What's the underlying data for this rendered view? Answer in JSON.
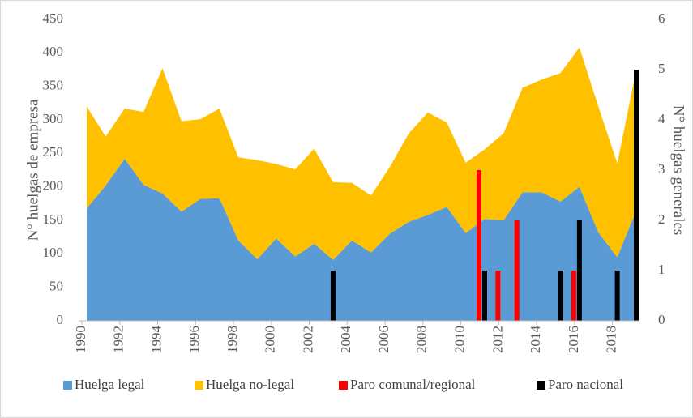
{
  "chart_data": {
    "type": "area_bar",
    "x": [
      1990,
      1991,
      1992,
      1993,
      1994,
      1995,
      1996,
      1997,
      1998,
      1999,
      2000,
      2001,
      2002,
      2003,
      2004,
      2005,
      2006,
      2007,
      2008,
      2009,
      2010,
      2011,
      2012,
      2013,
      2014,
      2015,
      2016,
      2017,
      2018,
      2019
    ],
    "xlim": [
      1990,
      2019
    ],
    "xticks": [
      1990,
      1992,
      1994,
      1996,
      1998,
      2000,
      2002,
      2004,
      2006,
      2008,
      2010,
      2012,
      2014,
      2016,
      2018
    ],
    "ylim": [
      0,
      450
    ],
    "yticks": [
      0,
      50,
      100,
      150,
      200,
      250,
      300,
      350,
      400,
      450
    ],
    "y2lim": [
      0,
      6
    ],
    "y2ticks": [
      0,
      1,
      2,
      3,
      4,
      5,
      6
    ],
    "ylabel": "N° huelgas de empresa",
    "y2label": "N° huelgas generales",
    "series": [
      {
        "name": "Huelga legal",
        "color": "#5b9bd5",
        "kind": "area",
        "values": [
          168,
          202,
          242,
          203,
          190,
          163,
          182,
          183,
          120,
          92,
          123,
          96,
          115,
          91,
          120,
          102,
          130,
          148,
          158,
          170,
          131,
          152,
          150,
          192,
          192,
          178,
          200,
          132,
          95,
          165
        ]
      },
      {
        "name": "Huelga no-legal",
        "color": "#ffc000",
        "kind": "area",
        "values": [
          152,
          73,
          75,
          109,
          187,
          135,
          119,
          134,
          124,
          148,
          111,
          130,
          142,
          116,
          86,
          85,
          100,
          132,
          153,
          126,
          105,
          104,
          130,
          156,
          168,
          192,
          208,
          188,
          140,
          210
        ]
      },
      {
        "name": "Paro comunal/regional",
        "color": "#ff0000",
        "kind": "bar",
        "axis": "y2",
        "values": [
          null,
          null,
          null,
          null,
          null,
          null,
          null,
          null,
          null,
          null,
          null,
          null,
          null,
          null,
          null,
          null,
          null,
          null,
          null,
          null,
          null,
          3,
          1,
          2,
          null,
          null,
          1,
          null,
          null,
          null
        ]
      },
      {
        "name": "Paro nacional",
        "color": "#000000",
        "kind": "bar",
        "axis": "y2",
        "values": [
          null,
          null,
          null,
          null,
          null,
          null,
          null,
          null,
          null,
          null,
          null,
          null,
          null,
          1,
          null,
          null,
          null,
          null,
          null,
          null,
          null,
          1,
          null,
          null,
          null,
          1,
          2,
          null,
          1,
          5
        ]
      }
    ]
  }
}
